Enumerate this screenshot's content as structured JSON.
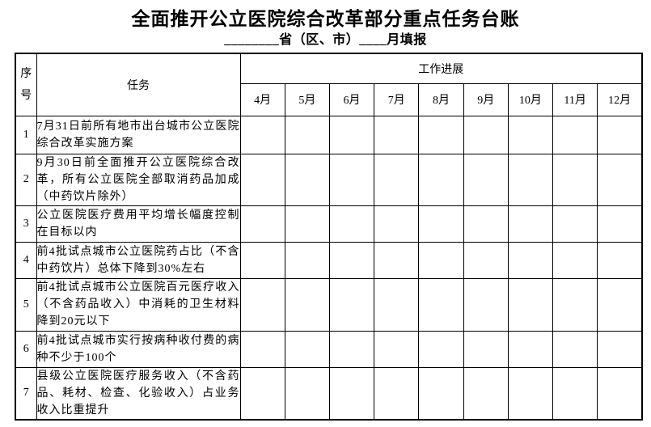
{
  "title": "全面推开公立医院综合改革部分重点任务台账",
  "subtitle": "________省（区、市）____月填报",
  "table": {
    "headers": {
      "seq": "序号",
      "task": "任务",
      "progress": "工作进展"
    },
    "months": [
      "4月",
      "5月",
      "6月",
      "7月",
      "8月",
      "9月",
      "10月",
      "11月",
      "12月"
    ],
    "rows": [
      {
        "no": "1",
        "task": "7月31日前所有地市出台城市公立医院综合改革实施方案"
      },
      {
        "no": "2",
        "task": "9月30日前全面推开公立医院综合改革，所有公立医院全部取消药品加成（中药饮片除外）"
      },
      {
        "no": "3",
        "task": "公立医院医疗费用平均增长幅度控制在目标以内"
      },
      {
        "no": "4",
        "task": "前4批试点城市公立医院药占比（不含中药饮片）总体下降到30%左右"
      },
      {
        "no": "5",
        "task": "前4批试点城市公立医院百元医疗收入（不含药品收入）中消耗的卫生材料降到20元以下"
      },
      {
        "no": "6",
        "task": "前4批试点城市实行按病种收付费的病种不少于100个"
      },
      {
        "no": "7",
        "task": "县级公立医院医疗服务收入（不含药品、耗材、检查、化验收入）占业务收入比重提升"
      }
    ],
    "progress_cell_value": ""
  }
}
